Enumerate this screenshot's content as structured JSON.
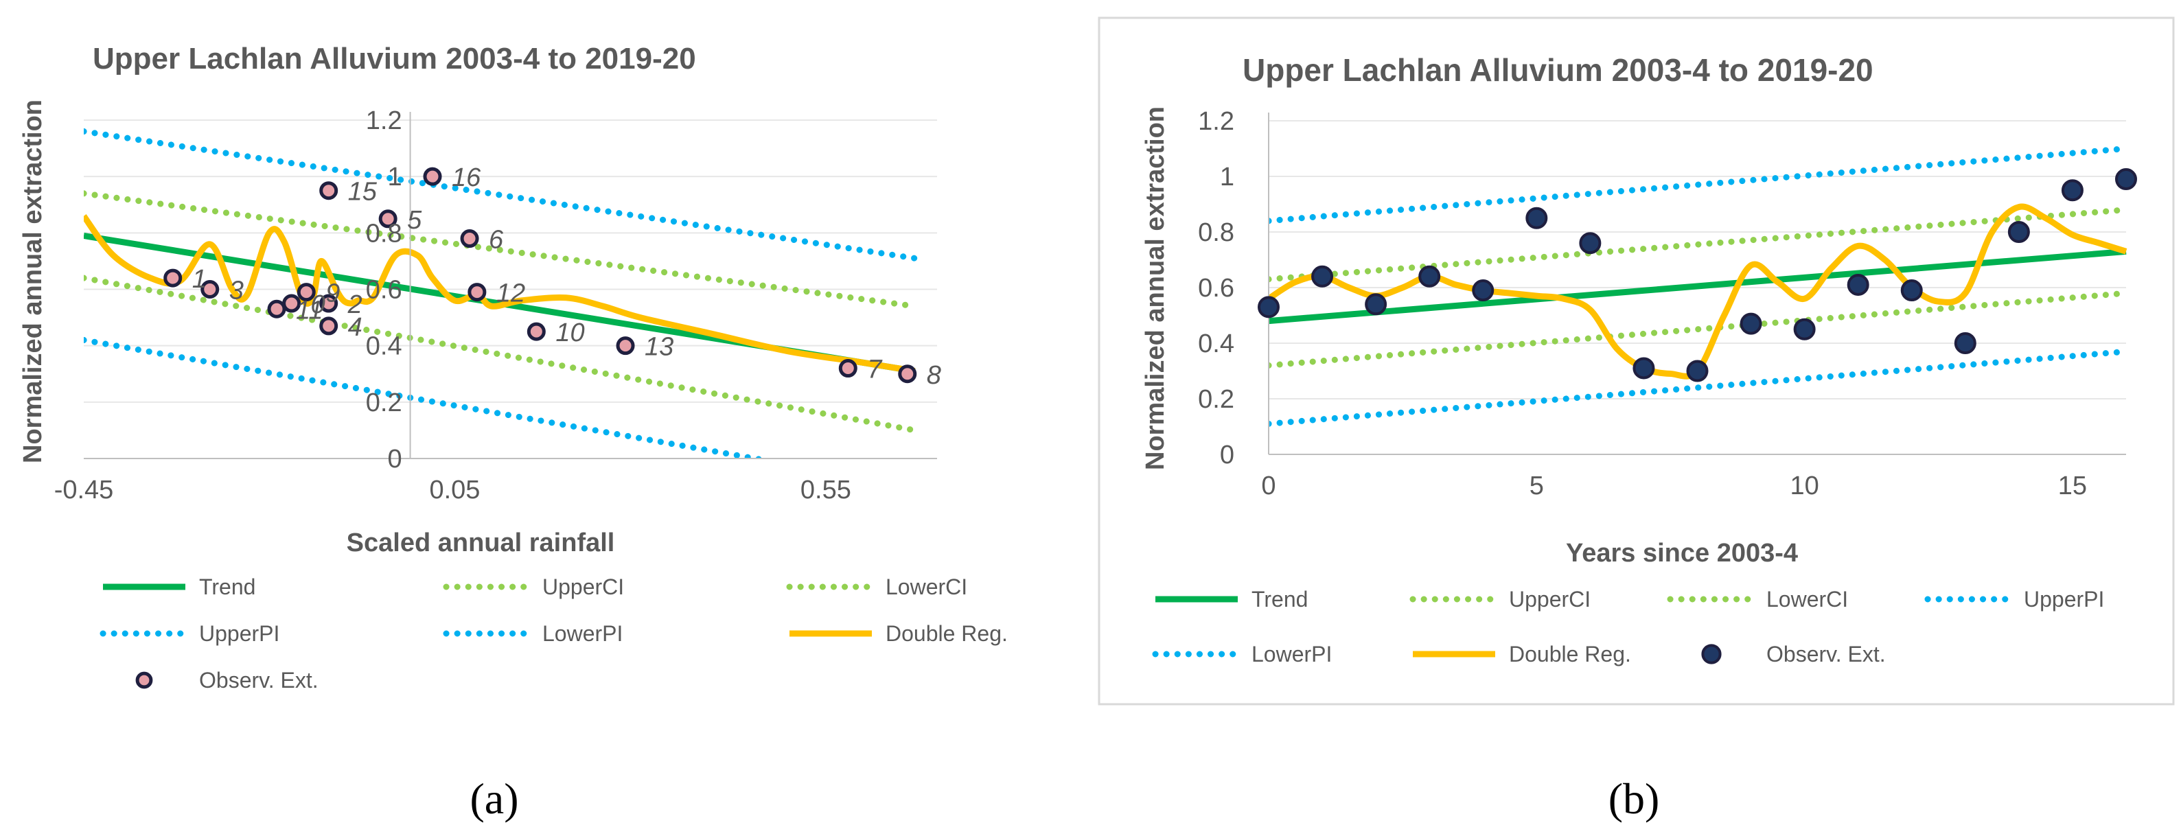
{
  "colors": {
    "trend": "#00b050",
    "ci": "#92d050",
    "pi": "#00b0f0",
    "double_reg": "#ffc000",
    "obs_fill_a": "#e6a0a8",
    "obs_fill_b": "#1f3864",
    "obs_stroke": "#1f1f3f",
    "text": "#595959",
    "frame": "#d9d9d9"
  },
  "captions": [
    "(a)",
    "(b)"
  ],
  "chart_data": [
    {
      "type": "scatter",
      "title": "Upper Lachlan Alluvium 2003-4 to 2019-20",
      "xlabel": "Scaled annual rainfall",
      "ylabel": "Normalized annual extraction",
      "xlim": [
        -0.45,
        0.7
      ],
      "ylim": [
        0,
        1.2
      ],
      "x_ticks": [
        "-0.45",
        "0.05",
        "0.55"
      ],
      "y_ticks": [
        "0",
        "0.2",
        "0.4",
        "0.6",
        "0.8",
        "1",
        "1.2"
      ],
      "y_axis_at_x": -0.01,
      "legend_labels": [
        "Trend",
        "UpperCI",
        "LowerCI",
        "UpperPI",
        "LowerPI",
        "Double Reg.",
        "Observ. Ext."
      ],
      "series": {
        "trend": {
          "x": [
            -0.45,
            0.67
          ],
          "y": [
            0.79,
            0.31
          ]
        },
        "upper_ci": {
          "x": [
            -0.45,
            0.67
          ],
          "y": [
            0.94,
            0.54
          ]
        },
        "lower_ci": {
          "x": [
            -0.45,
            0.67
          ],
          "y": [
            0.64,
            0.1
          ]
        },
        "upper_pi": {
          "x": [
            -0.45,
            0.67
          ],
          "y": [
            1.16,
            0.71
          ]
        },
        "lower_pi": {
          "x": [
            -0.45,
            0.67
          ],
          "y": [
            0.42,
            -0.1
          ]
        },
        "double_reg": {
          "x": [
            -0.45,
            -0.41,
            -0.36,
            -0.32,
            -0.28,
            -0.25,
            -0.23,
            -0.2,
            -0.18,
            -0.16,
            -0.15,
            -0.14,
            -0.13,
            -0.11,
            -0.1,
            -0.09,
            -0.08,
            -0.06,
            -0.03,
            0,
            0.02,
            0.05,
            0.08,
            0.1,
            0.14,
            0.2,
            0.25,
            0.3,
            0.4,
            0.5,
            0.6,
            0.67
          ],
          "y": [
            0.86,
            0.72,
            0.64,
            0.63,
            0.76,
            0.6,
            0.58,
            0.8,
            0.77,
            0.6,
            0.55,
            0.58,
            0.7,
            0.6,
            0.56,
            0.55,
            0.56,
            0.57,
            0.72,
            0.72,
            0.64,
            0.56,
            0.58,
            0.54,
            0.56,
            0.57,
            0.54,
            0.5,
            0.44,
            0.38,
            0.34,
            0.31
          ]
        },
        "observed": {
          "x": [
            -0.17,
            -0.33,
            -0.12,
            -0.28,
            -0.04,
            0.07,
            0.58,
            0.66,
            -0.15,
            0.16,
            -0.19,
            0.08,
            0.28,
            -0.12,
            -0.12,
            0.02
          ],
          "y": [
            0.55,
            0.64,
            0.55,
            0.6,
            0.85,
            0.78,
            0.32,
            0.3,
            0.59,
            0.45,
            0.53,
            0.59,
            0.4,
            0.47,
            0.95,
            1.0
          ]
        },
        "point_labels": [
          "0",
          "1",
          "2",
          "3",
          "5",
          "6",
          "7",
          "8",
          "9",
          "10",
          "11",
          "12",
          "13",
          "4",
          "15",
          "16"
        ]
      }
    },
    {
      "type": "scatter",
      "title": "Upper Lachlan Alluvium 2003-4 to 2019-20",
      "xlabel": "Years since 2003-4",
      "ylabel": "Normalized annual extraction",
      "xlim": [
        0,
        16
      ],
      "ylim": [
        0,
        1.2
      ],
      "x_ticks": [
        "0",
        "5",
        "10",
        "15"
      ],
      "y_ticks": [
        "0",
        "0.2",
        "0.4",
        "0.6",
        "0.8",
        "1",
        "1.2"
      ],
      "legend_labels": [
        "Trend",
        "UpperCI",
        "LowerCI",
        "UpperPI",
        "LowerPI",
        "Double Reg.",
        "Observ. Ext."
      ],
      "series": {
        "trend": {
          "x": [
            0,
            16
          ],
          "y": [
            0.48,
            0.73
          ]
        },
        "upper_ci": {
          "x": [
            0,
            16
          ],
          "y": [
            0.63,
            0.88
          ]
        },
        "lower_ci": {
          "x": [
            0,
            16
          ],
          "y": [
            0.32,
            0.58
          ]
        },
        "upper_pi": {
          "x": [
            0,
            16
          ],
          "y": [
            0.84,
            1.1
          ]
        },
        "lower_pi": {
          "x": [
            0,
            16
          ],
          "y": [
            0.11,
            0.37
          ]
        },
        "double_reg": {
          "x": [
            0,
            0.5,
            1,
            1.5,
            2,
            2.5,
            3,
            3.5,
            4,
            4.5,
            5,
            5.5,
            6,
            6.5,
            7,
            7.5,
            8,
            8.5,
            9,
            9.5,
            10,
            10.5,
            11,
            11.5,
            12,
            12.5,
            13,
            13.5,
            14,
            14.5,
            15,
            15.5,
            16
          ],
          "y": [
            0.56,
            0.62,
            0.64,
            0.6,
            0.57,
            0.6,
            0.64,
            0.61,
            0.59,
            0.58,
            0.57,
            0.56,
            0.52,
            0.38,
            0.31,
            0.29,
            0.3,
            0.5,
            0.68,
            0.62,
            0.56,
            0.67,
            0.75,
            0.7,
            0.6,
            0.55,
            0.58,
            0.8,
            0.89,
            0.85,
            0.79,
            0.76,
            0.73
          ]
        },
        "observed": {
          "x": [
            0,
            1,
            2,
            3,
            4,
            5,
            6,
            7,
            8,
            9,
            10,
            11,
            12,
            13,
            14,
            15,
            16
          ],
          "y": [
            0.53,
            0.64,
            0.54,
            0.64,
            0.59,
            0.85,
            0.76,
            0.31,
            0.3,
            0.47,
            0.45,
            0.61,
            0.59,
            0.4,
            0.8,
            0.95,
            0.99
          ]
        }
      }
    }
  ]
}
